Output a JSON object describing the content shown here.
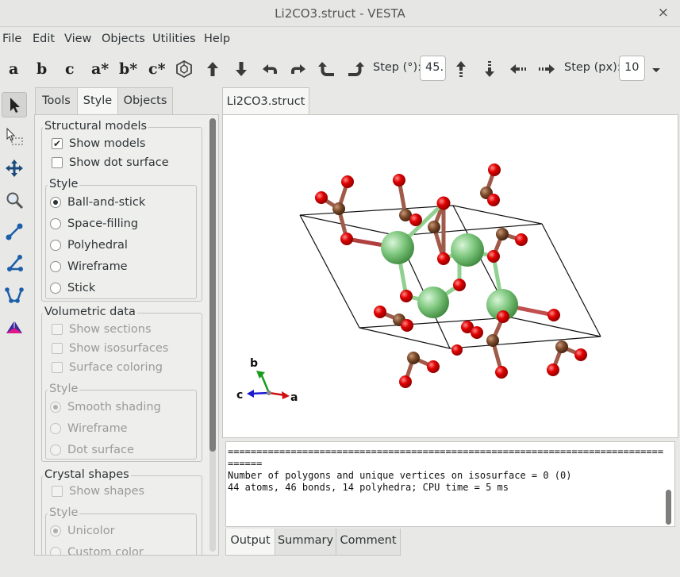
{
  "window": {
    "title": "Li2CO3.struct - VESTA",
    "close_glyph": "×"
  },
  "menu": [
    "File",
    "Edit",
    "View",
    "Objects",
    "Utilities",
    "Help"
  ],
  "toolbar": {
    "axes": [
      "a",
      "b",
      "c",
      "a*",
      "b*",
      "c*"
    ],
    "step_deg_label": "Step (°):",
    "step_deg_value": "45.",
    "step_px_label": "Step (px):",
    "step_px_value": "10"
  },
  "left_tabs": [
    "Tools",
    "Style",
    "Objects"
  ],
  "active_left_tab": "Style",
  "panel": {
    "structural_models": {
      "title": "Structural models",
      "show_models": "Show models",
      "show_dot_surface": "Show dot surface",
      "style_title": "Style",
      "styles": [
        "Ball-and-stick",
        "Space-filling",
        "Polyhedral",
        "Wireframe",
        "Stick"
      ],
      "selected": "Ball-and-stick"
    },
    "volumetric": {
      "title": "Volumetric data",
      "show_sections": "Show sections",
      "show_isosurfaces": "Show isosurfaces",
      "surface_coloring": "Surface coloring",
      "style_title": "Style",
      "styles": [
        "Smooth shading",
        "Wireframe",
        "Dot surface"
      ]
    },
    "crystal": {
      "title": "Crystal shapes",
      "show_shapes": "Show shapes",
      "style_title": "Style",
      "styles": [
        "Unicolor",
        "Custom color"
      ]
    }
  },
  "document_tab": "Li2CO3.struct",
  "axis_labels": {
    "a": "a",
    "b": "b",
    "c": "c"
  },
  "output": {
    "line1": "============================================================================",
    "line2": "======",
    "line3": "",
    "line4": "Number of polygons and unique vertices on isosurface = 0 (0)",
    "line5": "44 atoms, 46 bonds, 14 polyhedra; CPU time = 5 ms"
  },
  "bottom_tabs": [
    "Output",
    "Summary",
    "Comment"
  ],
  "colors": {
    "oxygen": "#e00000",
    "carbon": "#7a4a2a",
    "lithium": "#7fd07f",
    "accent": "#2e3436"
  },
  "icons": [
    "select-arrow-icon",
    "select-region-icon",
    "translate-icon",
    "magnify-icon",
    "distance-icon",
    "angle-icon",
    "dihedral-icon",
    "custom-tool-icon"
  ]
}
